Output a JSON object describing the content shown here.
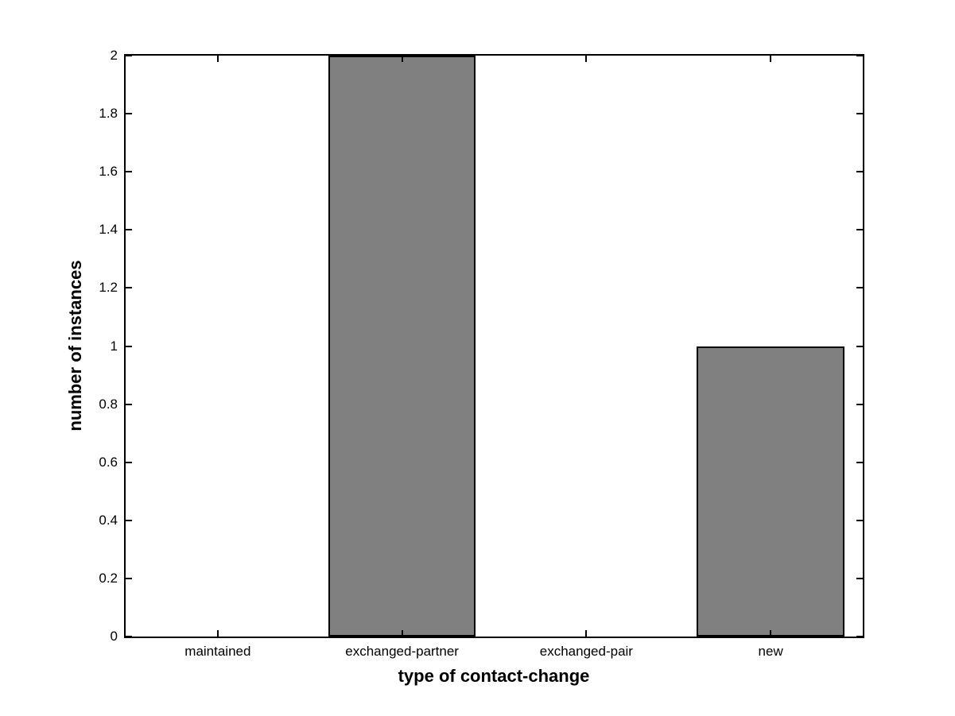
{
  "chart_data": {
    "type": "bar",
    "categories": [
      "maintained",
      "exchanged-partner",
      "exchanged-pair",
      "new"
    ],
    "values": [
      0,
      2,
      0,
      1
    ],
    "title": "",
    "xlabel": "type of contact-change",
    "ylabel": "number of instances",
    "ylim": [
      0,
      2
    ],
    "ytick_values": [
      0,
      0.2,
      0.4,
      0.6,
      0.8,
      1,
      1.2,
      1.4,
      1.6,
      1.8,
      2
    ],
    "ytick_labels": [
      "0",
      "0.2",
      "0.4",
      "0.6",
      "0.8",
      "1",
      "1.2",
      "1.4",
      "1.6",
      "1.8",
      "2"
    ],
    "bar_width_fraction": 0.8,
    "bar_color": "#808080",
    "bar_edge_color": "#000000",
    "axis_color": "#000000",
    "background_color": "#ffffff",
    "grid": false,
    "legend": null,
    "tick_direction": "in",
    "box": true
  }
}
